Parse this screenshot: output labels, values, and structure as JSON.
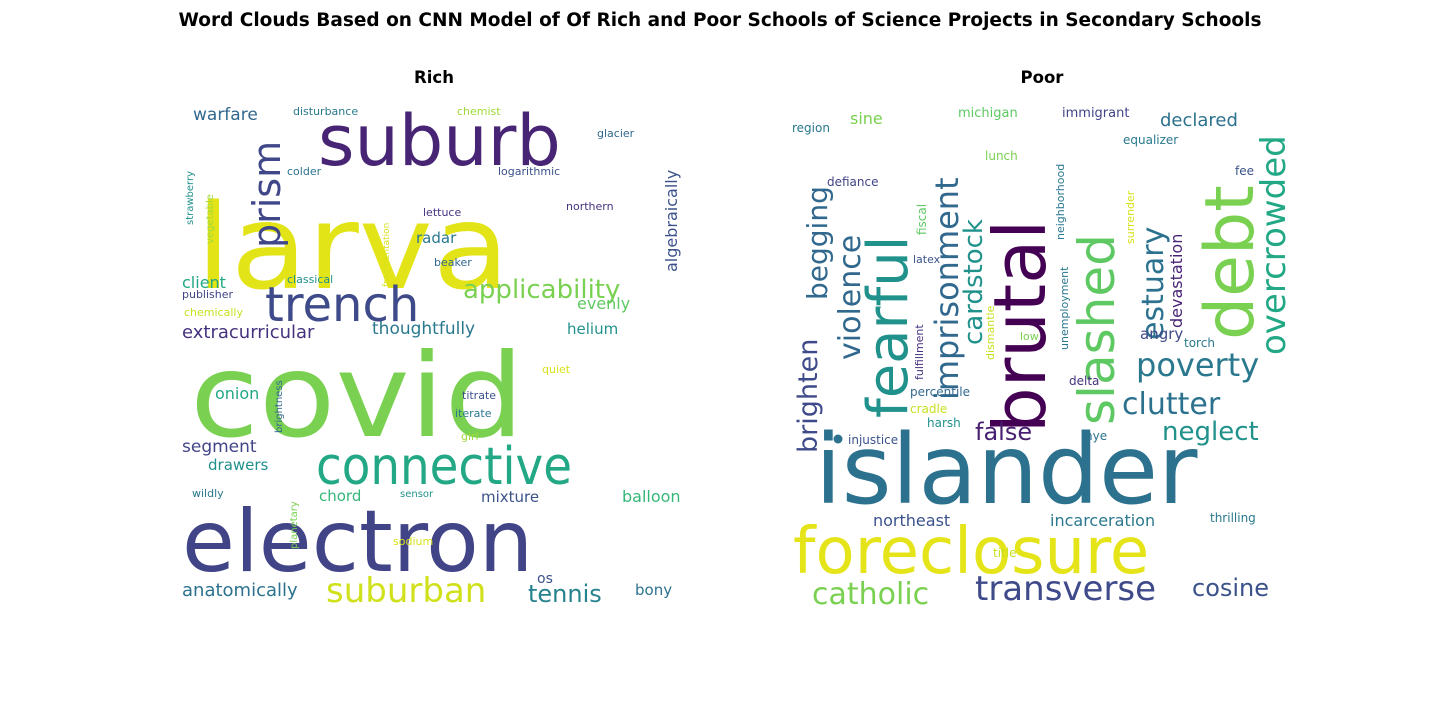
{
  "figure": {
    "title": "Word Clouds Based on CNN Model of Of Rich and Poor Schools of Science Projects in Secondary Schools"
  },
  "chart_data": [
    {
      "type": "wordcloud",
      "title": "Rich",
      "words": [
        {
          "text": "larva",
          "size": 118,
          "color": "#e3e418"
        },
        {
          "text": "covid",
          "size": 116,
          "color": "#7ad151"
        },
        {
          "text": "electron",
          "size": 86,
          "color": "#414487"
        },
        {
          "text": "suburb",
          "size": 70,
          "color": "#482475"
        },
        {
          "text": "connective",
          "size": 52,
          "color": "#22a884"
        },
        {
          "text": "trench",
          "size": 48,
          "color": "#3e4a89"
        },
        {
          "text": "prism",
          "size": 38,
          "color": "#3f4788"
        },
        {
          "text": "suburban",
          "size": 34,
          "color": "#d0e11c"
        },
        {
          "text": "applicability",
          "size": 26,
          "color": "#7ad151"
        },
        {
          "text": "tennis",
          "size": 24,
          "color": "#26828e"
        },
        {
          "text": "extracurricular",
          "size": 18,
          "color": "#46327e"
        },
        {
          "text": "anatomically",
          "size": 18,
          "color": "#2c728e"
        },
        {
          "text": "thoughtfully",
          "size": 17,
          "color": "#2a788e"
        },
        {
          "text": "algebraically",
          "size": 16,
          "color": "#3b528b"
        },
        {
          "text": "segment",
          "size": 17,
          "color": "#414487"
        },
        {
          "text": "warfare",
          "size": 17,
          "color": "#31688e"
        },
        {
          "text": "client",
          "size": 16,
          "color": "#22a884"
        },
        {
          "text": "onion",
          "size": 16,
          "color": "#22a884"
        },
        {
          "text": "balloon",
          "size": 16,
          "color": "#35b779"
        },
        {
          "text": "evenly",
          "size": 16,
          "color": "#5ec962"
        },
        {
          "text": "radar",
          "size": 15,
          "color": "#2a788e"
        },
        {
          "text": "helium",
          "size": 15,
          "color": "#21918c"
        },
        {
          "text": "mixture",
          "size": 15,
          "color": "#3b528b"
        },
        {
          "text": "chord",
          "size": 15,
          "color": "#35b779"
        },
        {
          "text": "drawers",
          "size": 15,
          "color": "#21918c"
        },
        {
          "text": "bony",
          "size": 15,
          "color": "#2c728e"
        },
        {
          "text": "os",
          "size": 14,
          "color": "#3b528b"
        },
        {
          "text": "glacier",
          "size": 11,
          "color": "#31688e"
        },
        {
          "text": "disturbance",
          "size": 11,
          "color": "#2a788e"
        },
        {
          "text": "chemist",
          "size": 11,
          "color": "#a0da39"
        },
        {
          "text": "colder",
          "size": 11,
          "color": "#2c728e"
        },
        {
          "text": "logarithmic",
          "size": 11,
          "color": "#3b528b"
        },
        {
          "text": "lettuce",
          "size": 11,
          "color": "#46327e"
        },
        {
          "text": "northern",
          "size": 11,
          "color": "#46327e"
        },
        {
          "text": "beaker",
          "size": 11,
          "color": "#31688e"
        },
        {
          "text": "classical",
          "size": 11,
          "color": "#21918c"
        },
        {
          "text": "publisher",
          "size": 11,
          "color": "#414487"
        },
        {
          "text": "chemically",
          "size": 11,
          "color": "#c8e020"
        },
        {
          "text": "titrate",
          "size": 11,
          "color": "#3b528b"
        },
        {
          "text": "iterate",
          "size": 11,
          "color": "#2a788e"
        },
        {
          "text": "quiet",
          "size": 11,
          "color": "#d8e219"
        },
        {
          "text": "girl",
          "size": 11,
          "color": "#a0da39"
        },
        {
          "text": "wildly",
          "size": 11,
          "color": "#2a788e"
        },
        {
          "text": "sensor",
          "size": 10,
          "color": "#21918c"
        },
        {
          "text": "sodium",
          "size": 11,
          "color": "#d8e219"
        },
        {
          "text": "strawberry",
          "size": 10,
          "color": "#21918c"
        },
        {
          "text": "vegetable",
          "size": 10,
          "color": "#a0da39"
        },
        {
          "text": "fragmentation",
          "size": 9,
          "color": "#d8e219"
        },
        {
          "text": "brightness",
          "size": 10,
          "color": "#31688e"
        },
        {
          "text": "planetary",
          "size": 10,
          "color": "#7ad151"
        }
      ]
    },
    {
      "type": "wordcloud",
      "title": "Poor",
      "words": [
        {
          "text": "islander",
          "size": 96,
          "color": "#2c728e"
        },
        {
          "text": "foreclosure",
          "size": 64,
          "color": "#e5e419"
        },
        {
          "text": "brutal",
          "size": 72,
          "color": "#440154"
        },
        {
          "text": "debt",
          "size": 68,
          "color": "#7ad151"
        },
        {
          "text": "fearful",
          "size": 56,
          "color": "#21918c"
        },
        {
          "text": "slashed",
          "size": 50,
          "color": "#5ec962"
        },
        {
          "text": "overcrowded",
          "size": 34,
          "color": "#22a884"
        },
        {
          "text": "transverse",
          "size": 34,
          "color": "#3e4a89"
        },
        {
          "text": "imprisonment",
          "size": 32,
          "color": "#31688e"
        },
        {
          "text": "poverty",
          "size": 32,
          "color": "#2a788e"
        },
        {
          "text": "catholic",
          "size": 30,
          "color": "#7ad151"
        },
        {
          "text": "clutter",
          "size": 30,
          "color": "#2c728e"
        },
        {
          "text": "violence",
          "size": 30,
          "color": "#31688e"
        },
        {
          "text": "begging",
          "size": 28,
          "color": "#31688e"
        },
        {
          "text": "estuary",
          "size": 30,
          "color": "#2c728e"
        },
        {
          "text": "brighten",
          "size": 27,
          "color": "#3e4a89"
        },
        {
          "text": "cardstock",
          "size": 26,
          "color": "#21918c"
        },
        {
          "text": "neglect",
          "size": 26,
          "color": "#21918c"
        },
        {
          "text": "cosine",
          "size": 24,
          "color": "#3b528b"
        },
        {
          "text": "false",
          "size": 24,
          "color": "#481f70"
        },
        {
          "text": "declared",
          "size": 18,
          "color": "#2c728e"
        },
        {
          "text": "devastation",
          "size": 16,
          "color": "#482475"
        },
        {
          "text": "incarceration",
          "size": 16,
          "color": "#2a788e"
        },
        {
          "text": "northeast",
          "size": 16,
          "color": "#3b528b"
        },
        {
          "text": "angry",
          "size": 15,
          "color": "#3e4a89"
        },
        {
          "text": "sine",
          "size": 16,
          "color": "#7ad151"
        },
        {
          "text": "immigrant",
          "size": 13,
          "color": "#414487"
        },
        {
          "text": "michigan",
          "size": 13,
          "color": "#5ec962"
        },
        {
          "text": "region",
          "size": 12,
          "color": "#2a788e"
        },
        {
          "text": "equalizer",
          "size": 12,
          "color": "#2a788e"
        },
        {
          "text": "defiance",
          "size": 12,
          "color": "#414487"
        },
        {
          "text": "fiscal",
          "size": 12,
          "color": "#5ec962"
        },
        {
          "text": "lunch",
          "size": 12,
          "color": "#7ad151"
        },
        {
          "text": "fee",
          "size": 12,
          "color": "#3b528b"
        },
        {
          "text": "neighborhood",
          "size": 11,
          "color": "#2a788e"
        },
        {
          "text": "surrender",
          "size": 11,
          "color": "#d8e219"
        },
        {
          "text": "latex",
          "size": 11,
          "color": "#3b528b"
        },
        {
          "text": "fulfillment",
          "size": 11,
          "color": "#46327e"
        },
        {
          "text": "dismantle",
          "size": 11,
          "color": "#c8e020"
        },
        {
          "text": "unemployment",
          "size": 11,
          "color": "#2a788e"
        },
        {
          "text": "low",
          "size": 11,
          "color": "#7ad151"
        },
        {
          "text": "torch",
          "size": 12,
          "color": "#2a788e"
        },
        {
          "text": "delta",
          "size": 12,
          "color": "#46327e"
        },
        {
          "text": "percentile",
          "size": 12,
          "color": "#31688e"
        },
        {
          "text": "cradle",
          "size": 12,
          "color": "#c8e020"
        },
        {
          "text": "harsh",
          "size": 12,
          "color": "#21918c"
        },
        {
          "text": "injustice",
          "size": 12,
          "color": "#3b528b"
        },
        {
          "text": "nye",
          "size": 12,
          "color": "#2c728e"
        },
        {
          "text": "thrilling",
          "size": 12,
          "color": "#2a788e"
        },
        {
          "text": "title",
          "size": 12,
          "color": "#c8e020"
        }
      ]
    }
  ]
}
